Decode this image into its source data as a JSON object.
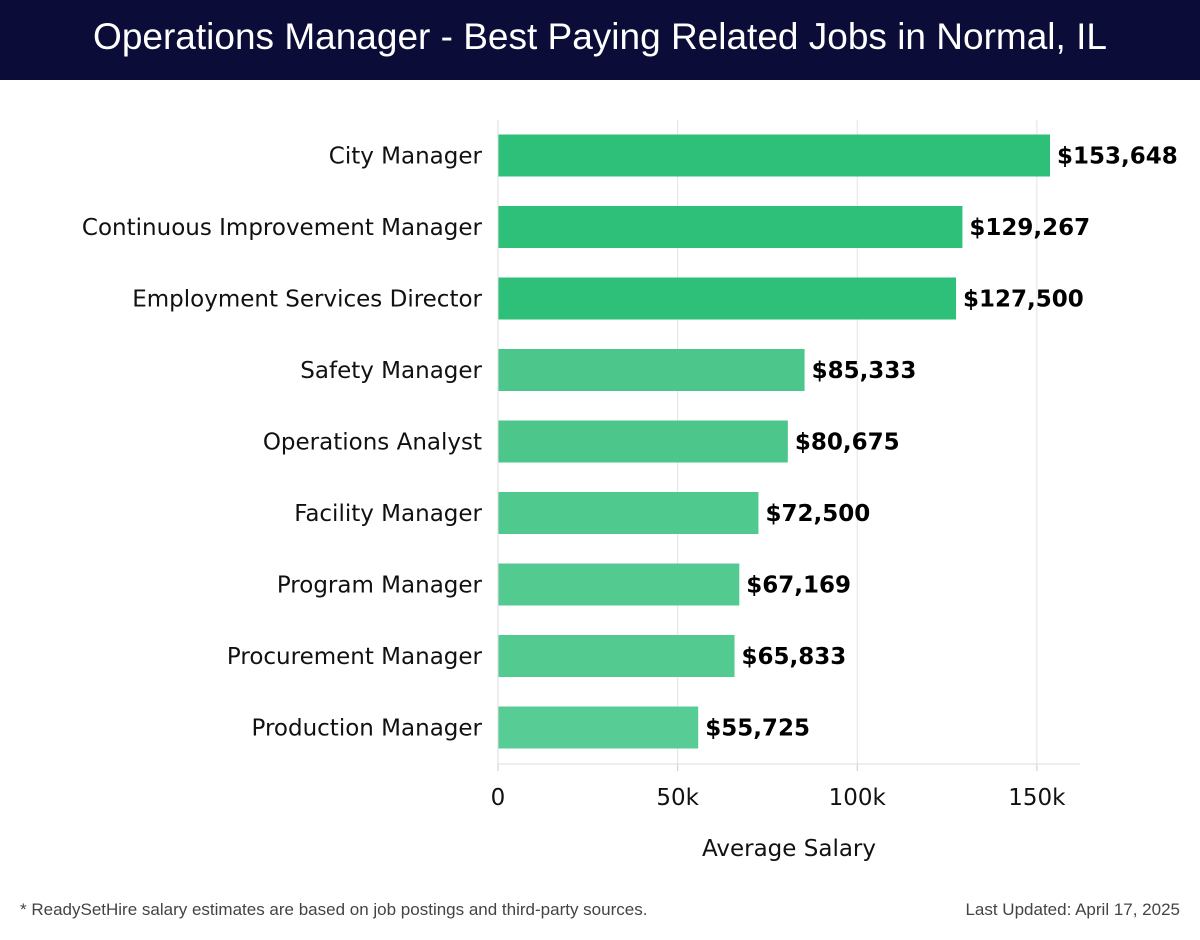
{
  "header": {
    "title": "Operations Manager - Best Paying Related Jobs in Normal, IL"
  },
  "footer": {
    "note": "* ReadySetHire salary estimates are based on job postings and third-party sources.",
    "last_updated": "Last Updated: April 17, 2025"
  },
  "colors": {
    "header_bg": "#0b0d38",
    "bar_colors": [
      "#2ebf78",
      "#2ebf78",
      "#2ebf78",
      "#4cc68a",
      "#4cc68a",
      "#4fc98d",
      "#52ca90",
      "#52ca90",
      "#57cc94"
    ]
  },
  "chart_data": {
    "type": "bar",
    "orientation": "horizontal",
    "title": "Operations Manager - Best Paying Related Jobs in Normal, IL",
    "xlabel": "Average Salary",
    "ylabel": "",
    "categories": [
      "City Manager",
      "Continuous Improvement Manager",
      "Employment Services Director",
      "Safety Manager",
      "Operations Analyst",
      "Facility Manager",
      "Program Manager",
      "Procurement Manager",
      "Production Manager"
    ],
    "values": [
      153648,
      129267,
      127500,
      85333,
      80675,
      72500,
      67169,
      65833,
      55725
    ],
    "value_labels": [
      "$153,648",
      "$129,267",
      "$127,500",
      "$85,333",
      "$80,675",
      "$72,500",
      "$67,169",
      "$65,833",
      "$55,725"
    ],
    "xlim": [
      0,
      162000
    ],
    "x_ticks": [
      0,
      50000,
      100000,
      150000
    ],
    "x_tick_labels": [
      "0",
      "50k",
      "100k",
      "150k"
    ],
    "grid": "vertical",
    "legend": "none"
  }
}
